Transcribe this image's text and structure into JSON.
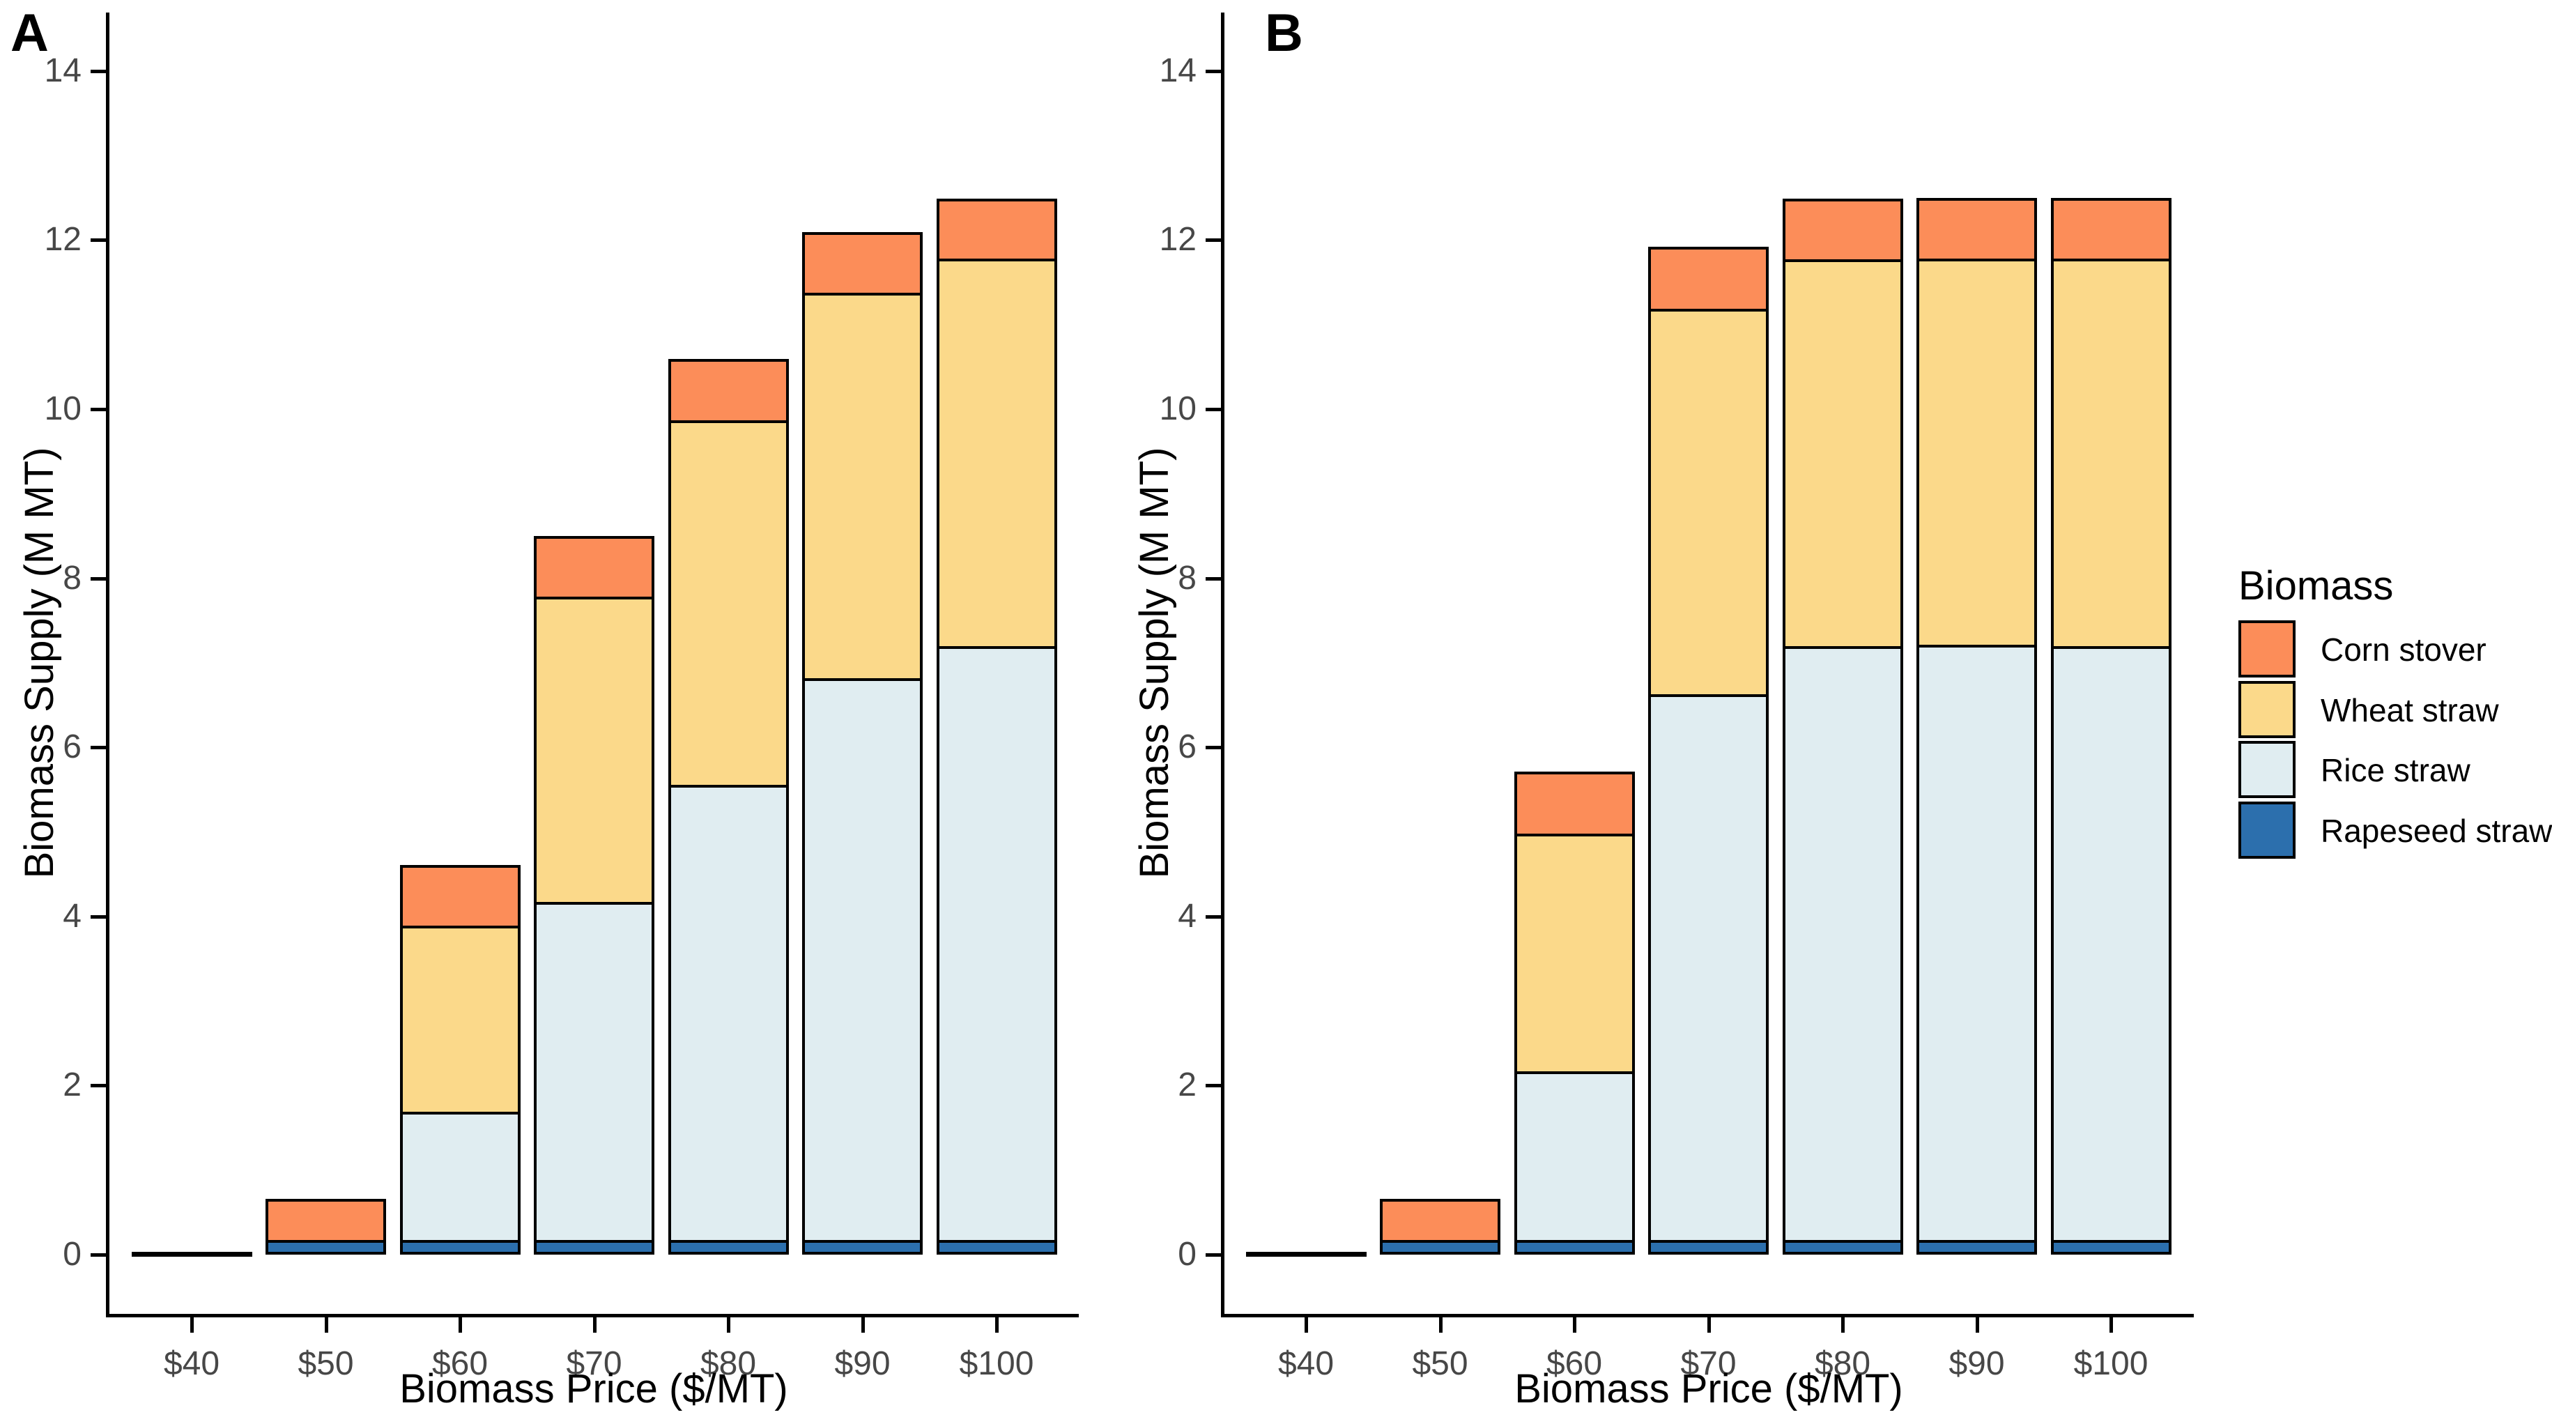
{
  "chart_data": [
    {
      "type": "bar",
      "stacked": true,
      "panel_label": "A",
      "xlabel": "Biomass Price ($/MT)",
      "ylabel": "Biomass Supply (M MT)",
      "categories": [
        "$40",
        "$50",
        "$60",
        "$70",
        "$80",
        "$90",
        "$100"
      ],
      "y_tick_values": [
        0,
        2,
        4,
        6,
        8,
        10,
        12,
        14
      ],
      "ylim": [
        0,
        14
      ],
      "grid": "off",
      "legend_position": "right-of-figure",
      "series": [
        {
          "name": "Rapeseed straw",
          "color": "#2C6FAD",
          "values": [
            0,
            0.17,
            0.17,
            0.17,
            0.17,
            0.17,
            0.17
          ]
        },
        {
          "name": "Rice straw",
          "color": "#E0EDF1",
          "values": [
            0,
            0,
            1.52,
            4.0,
            5.39,
            6.65,
            7.03
          ]
        },
        {
          "name": "Wheat straw",
          "color": "#FBD98A",
          "values": [
            0,
            0,
            2.2,
            3.61,
            4.31,
            4.56,
            4.58
          ]
        },
        {
          "name": "Corn stover",
          "color": "#FC8D59",
          "values": [
            0,
            0.49,
            0.72,
            0.72,
            0.72,
            0.71,
            0.71
          ]
        }
      ],
      "totals": [
        0,
        0.66,
        4.61,
        8.5,
        10.59,
        12.09,
        12.49
      ]
    },
    {
      "type": "bar",
      "stacked": true,
      "panel_label": "B",
      "xlabel": "Biomass Price ($/MT)",
      "ylabel": "Biomass Supply (M MT)",
      "categories": [
        "$40",
        "$50",
        "$60",
        "$70",
        "$80",
        "$90",
        "$100"
      ],
      "y_tick_values": [
        0,
        2,
        4,
        6,
        8,
        10,
        12,
        14
      ],
      "ylim": [
        0,
        14
      ],
      "grid": "off",
      "legend_position": "right-of-figure",
      "series": [
        {
          "name": "Rapeseed straw",
          "color": "#2C6FAD",
          "values": [
            0,
            0.17,
            0.17,
            0.17,
            0.17,
            0.17,
            0.17
          ]
        },
        {
          "name": "Rice straw",
          "color": "#E0EDF1",
          "values": [
            0,
            0,
            2.0,
            6.46,
            7.03,
            7.04,
            7.03
          ]
        },
        {
          "name": "Wheat straw",
          "color": "#FBD98A",
          "values": [
            0,
            0,
            2.81,
            4.56,
            4.57,
            4.57,
            4.58
          ]
        },
        {
          "name": "Corn stover",
          "color": "#FC8D59",
          "values": [
            0,
            0.49,
            0.73,
            0.73,
            0.72,
            0.72,
            0.72
          ]
        }
      ],
      "totals": [
        0,
        0.66,
        5.71,
        11.92,
        12.49,
        12.5,
        12.51
      ]
    }
  ],
  "legend": {
    "title": "Biomass",
    "entries": [
      {
        "label": "Corn stover",
        "color": "#FC8D59"
      },
      {
        "label": "Wheat straw",
        "color": "#FBD98A"
      },
      {
        "label": "Rice straw",
        "color": "#E0EDF1"
      },
      {
        "label": "Rapeseed straw",
        "color": "#2C6FAD"
      }
    ]
  }
}
